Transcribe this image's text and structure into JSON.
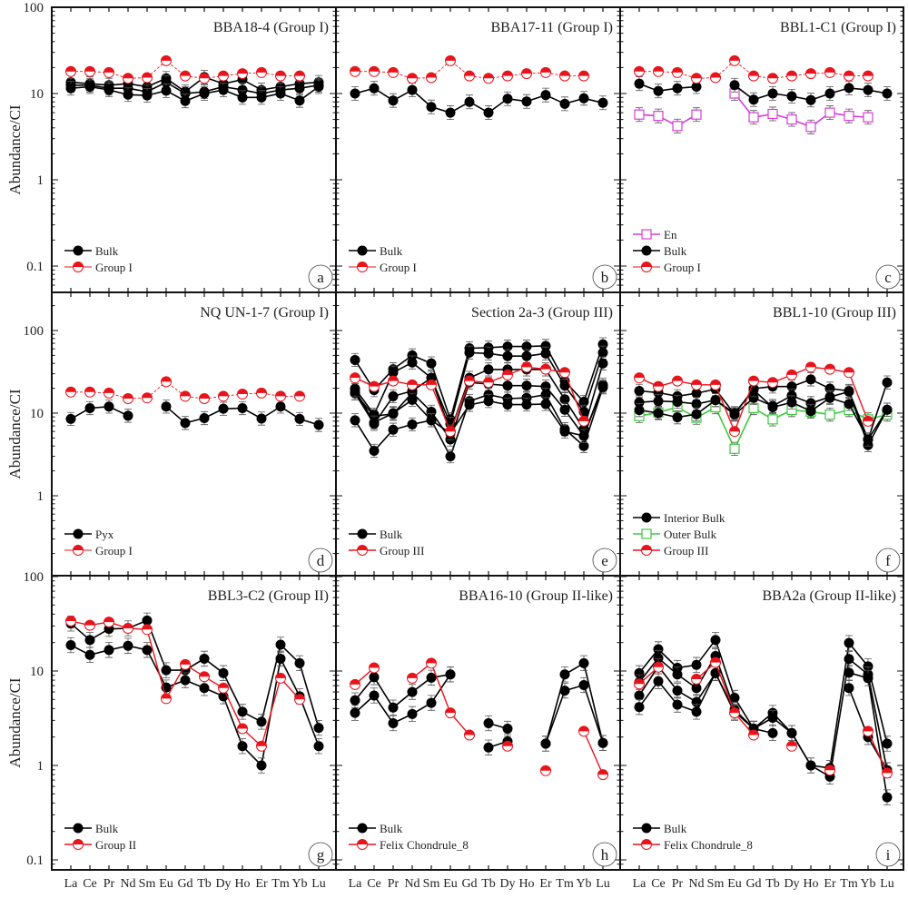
{
  "figure": {
    "ylabel": "Abundance/CI",
    "elements": [
      "La",
      "Ce",
      "Pr",
      "Nd",
      "Sm",
      "Eu",
      "Gd",
      "Tb",
      "Dy",
      "Ho",
      "Er",
      "Tm",
      "Yb",
      "Lu"
    ]
  },
  "colors": {
    "bulk": "#000000",
    "reference": "#e8141c",
    "en": "#d43fd4",
    "outer_bulk": "#3ec93e",
    "errorbar": "#555555"
  },
  "chart_data": [
    {
      "type": "line",
      "panel": "a",
      "title": "BBA18-4 (Group I)",
      "ylabel": "Abundance/CI",
      "yscale": "log",
      "ylim": [
        0.05,
        100
      ],
      "yticks": [
        "100",
        "10",
        "1",
        "0.1"
      ],
      "row": 0,
      "col": 0,
      "legend": [
        {
          "label": "Bulk",
          "style": "bulk"
        },
        {
          "label": "Group I",
          "style": "ref-dashed"
        }
      ],
      "series": [
        {
          "name": "Bulk",
          "style": "bulk",
          "values": [
            13.5,
            13,
            12.5,
            13,
            12,
            15,
            10.5,
            15.5,
            13,
            14.5,
            11,
            12,
            13,
            13.5
          ]
        },
        {
          "name": "Bulk",
          "style": "bulk",
          "values": [
            12.5,
            12.5,
            11.5,
            11.5,
            10.5,
            13.5,
            10,
            10.5,
            12,
            11,
            10,
            11,
            11.5,
            12.5
          ]
        },
        {
          "name": "Bulk",
          "style": "bulk",
          "values": [
            11.5,
            12,
            11,
            9.7,
            9.5,
            10.8,
            8.2,
            10,
            11,
            9,
            9,
            10,
            8.3,
            12
          ]
        },
        {
          "name": "Group I",
          "style": "ref-dashed",
          "values": [
            18,
            18,
            17.5,
            15,
            15.3,
            24,
            16,
            15,
            16,
            17,
            17.5,
            16,
            16,
            null
          ]
        }
      ]
    },
    {
      "type": "line",
      "panel": "b",
      "title": "BBA17-11 (Group I)",
      "yscale": "log",
      "ylim": [
        0.05,
        100
      ],
      "row": 0,
      "col": 1,
      "legend": [
        {
          "label": "Bulk",
          "style": "bulk"
        },
        {
          "label": "Group I",
          "style": "ref-dashed"
        }
      ],
      "series": [
        {
          "name": "Bulk",
          "style": "bulk",
          "values": [
            10,
            11.5,
            8.3,
            11,
            7,
            6,
            8,
            6,
            8.7,
            8.1,
            9.6,
            7.6,
            8.8,
            7.8
          ]
        },
        {
          "name": "Group I",
          "style": "ref-dashed",
          "values": [
            18,
            18,
            17.5,
            15,
            15.3,
            24,
            16,
            15,
            16,
            17,
            17.5,
            16,
            16,
            null
          ]
        }
      ]
    },
    {
      "type": "line",
      "panel": "c",
      "title": "BBL1-C1 (Group I)",
      "yscale": "log",
      "ylim": [
        0.05,
        100
      ],
      "row": 0,
      "col": 2,
      "legend": [
        {
          "label": "En",
          "style": "en"
        },
        {
          "label": "Bulk",
          "style": "bulk"
        },
        {
          "label": "Group I",
          "style": "ref-dashed"
        }
      ],
      "series": [
        {
          "name": "En",
          "style": "en",
          "values": [
            5.7,
            5.5,
            4.2,
            5.7,
            null,
            10,
            5.3,
            5.8,
            5,
            4.1,
            6,
            5.5,
            5.3,
            null
          ]
        },
        {
          "name": "Bulk",
          "style": "bulk",
          "values": [
            13,
            10.7,
            11.5,
            12,
            null,
            12.5,
            8.5,
            10,
            9.3,
            8.4,
            10,
            11.6,
            11,
            10
          ]
        },
        {
          "name": "Group I",
          "style": "ref-dashed",
          "values": [
            18,
            18,
            17.5,
            15,
            15.3,
            24,
            16,
            15,
            16,
            17,
            17.5,
            16,
            16,
            null
          ]
        }
      ]
    },
    {
      "type": "line",
      "panel": "d",
      "title": "NQ UN-1-7 (Group I)",
      "yscale": "log",
      "ylim": [
        0.1,
        290
      ],
      "yticks": [
        "100",
        "10",
        "1",
        "100"
      ],
      "row": 1,
      "col": 0,
      "legend": [
        {
          "label": "Pyx",
          "style": "bulk"
        },
        {
          "label": "Group I",
          "style": "ref-dashed"
        }
      ],
      "series": [
        {
          "name": "Pyx",
          "style": "bulk",
          "values": [
            8.5,
            11.5,
            12,
            9.3,
            null,
            12,
            7.6,
            8.7,
            11.3,
            11.5,
            8.6,
            12,
            8.5,
            7.2
          ]
        },
        {
          "name": "Group I",
          "style": "ref-dashed",
          "values": [
            18,
            18,
            17.5,
            15,
            15.3,
            24,
            16,
            15,
            16,
            17,
            17.5,
            16,
            16,
            null
          ]
        }
      ]
    },
    {
      "type": "line",
      "panel": "e",
      "title": "Section 2a-3 (Group III)",
      "yscale": "log",
      "ylim": [
        0.1,
        290
      ],
      "row": 1,
      "col": 1,
      "legend": [
        {
          "label": "Bulk",
          "style": "bulk"
        },
        {
          "label": "Group III",
          "style": "ref"
        }
      ],
      "series": [
        {
          "name": "Bulk",
          "style": "bulk",
          "values": [
            44,
            19,
            34,
            50,
            40,
            8.4,
            61,
            62,
            64,
            64,
            65,
            24.5,
            13.7,
            68
          ]
        },
        {
          "name": "Bulk",
          "style": "bulk",
          "values": [
            19.8,
            9.6,
            31,
            41,
            26.7,
            7.4,
            54,
            52.7,
            49,
            49,
            52.7,
            21.5,
            10.4,
            54
          ]
        },
        {
          "name": "Bulk",
          "style": "bulk",
          "values": [
            17.4,
            7.4,
            16,
            18.6,
            26.7,
            6,
            26.7,
            33.8,
            33.8,
            33.8,
            33.8,
            14.7,
            6.4,
            40
          ]
        },
        {
          "name": "Bulk",
          "style": "bulk",
          "values": [
            17.4,
            9.2,
            9.8,
            17.6,
            10.4,
            4.8,
            23.5,
            22.5,
            21.5,
            21.5,
            21,
            11,
            5.3,
            22
          ]
        },
        {
          "name": "Bulk",
          "style": "bulk",
          "values": [
            8.2,
            3.5,
            6.3,
            7.3,
            8.2,
            3,
            14,
            16.7,
            15,
            15.3,
            16.7,
            6.4,
            4,
            20.5
          ]
        },
        {
          "name": "Bulk",
          "style": "bulk",
          "values": [
            19,
            7.7,
            10,
            14.5,
            8.2,
            5.7,
            12.6,
            14,
            12.7,
            12.7,
            12.9,
            6,
            5.3,
            21
          ]
        },
        {
          "name": "Group III",
          "style": "ref",
          "values": [
            26.7,
            21,
            24.5,
            22,
            22,
            6,
            24.5,
            23.5,
            29,
            36,
            34,
            31,
            8,
            null
          ]
        }
      ]
    },
    {
      "type": "line",
      "panel": "f",
      "title": "BBL1-10 (Group III)",
      "yscale": "log",
      "ylim": [
        0.1,
        290
      ],
      "row": 1,
      "col": 2,
      "legend": [
        {
          "label": "Interior Bulk",
          "style": "bulk"
        },
        {
          "label": "Outer Bulk",
          "style": "outer"
        },
        {
          "label": "Group III",
          "style": "ref"
        }
      ],
      "series": [
        {
          "name": "Outer Bulk",
          "style": "outer",
          "values": [
            9.2,
            10.2,
            11.8,
            8.8,
            11.8,
            3.7,
            11.5,
            8.4,
            10.9,
            10.4,
            9.6,
            10.9,
            8.4,
            9.6
          ]
        },
        {
          "name": "Interior Bulk",
          "style": "bulk",
          "values": [
            18.6,
            17.7,
            16,
            17.4,
            19.5,
            9.7,
            19.8,
            21,
            21,
            25.6,
            19.8,
            18.6,
            4.8,
            23.5
          ]
        },
        {
          "name": "Interior Bulk",
          "style": "bulk",
          "values": [
            13.5,
            14,
            13.7,
            12.9,
            14.4,
            9.6,
            15.3,
            12.2,
            16.3,
            13.2,
            15.7,
            18.2,
            4.1,
            11
          ]
        },
        {
          "name": "Interior Bulk",
          "style": "bulk",
          "values": [
            10.9,
            10,
            8.9,
            9.7,
            14.4,
            10,
            19,
            11.8,
            13.5,
            10.6,
            15.3,
            12.9,
            4.8,
            11
          ]
        },
        {
          "name": "Group III",
          "style": "ref",
          "values": [
            26.7,
            21,
            24.5,
            22,
            22,
            6,
            24.5,
            23.5,
            29,
            36,
            34,
            31,
            8,
            null
          ]
        }
      ]
    },
    {
      "type": "line",
      "panel": "g",
      "title": "BBL3-C2 (Group II)",
      "yscale": "log",
      "ylim": [
        0.08,
        100
      ],
      "yticks": [
        "100",
        "10",
        "1",
        "0.1"
      ],
      "row": 2,
      "col": 0,
      "legend": [
        {
          "label": "Bulk",
          "style": "bulk"
        },
        {
          "label": "Group II",
          "style": "ref"
        }
      ],
      "series": [
        {
          "name": "Bulk",
          "style": "bulk",
          "values": [
            31.8,
            21.3,
            27.9,
            28.3,
            34.3,
            10.2,
            10.2,
            13.5,
            9.5,
            3.7,
            2.9,
            19,
            12.1,
            2.5
          ]
        },
        {
          "name": "Bulk",
          "style": "bulk",
          "values": [
            18.8,
            14.8,
            16.7,
            18.5,
            16.7,
            6.7,
            8,
            6.6,
            5.4,
            1.6,
            1.0,
            13.5,
            5.4,
            1.6
          ]
        },
        {
          "name": "Group II",
          "style": "ref",
          "values": [
            33.8,
            30.5,
            33,
            28.3,
            27.5,
            5.1,
            11.7,
            8.7,
            6.6,
            2.45,
            1.6,
            8.4,
            5.0,
            null
          ]
        }
      ]
    },
    {
      "type": "line",
      "panel": "h",
      "title": "BBA16-10 (Group II-like)",
      "yscale": "log",
      "ylim": [
        0.08,
        100
      ],
      "row": 2,
      "col": 1,
      "legend": [
        {
          "label": "Bulk",
          "style": "bulk"
        },
        {
          "label": "Felix Chondrule_8",
          "style": "ref"
        }
      ],
      "series": [
        {
          "name": "Bulk",
          "style": "bulk",
          "values": [
            4.9,
            8.6,
            4.1,
            6.0,
            8.5,
            9.2,
            null,
            2.8,
            2.45,
            null,
            1.7,
            9.2,
            12.1,
            1.73
          ]
        },
        {
          "name": "Bulk",
          "style": "bulk",
          "values": [
            3.6,
            5.5,
            2.8,
            3.5,
            4.6,
            9.2,
            null,
            1.55,
            1.8,
            null,
            1.7,
            6.2,
            7.1,
            1.73
          ]
        },
        {
          "name": "Felix Chondrule_8",
          "style": "ref",
          "values": [
            7.2,
            10.8,
            null,
            8.4,
            12.1,
            3.6,
            2.1,
            null,
            1.6,
            null,
            0.88,
            null,
            2.3,
            0.8
          ]
        }
      ]
    },
    {
      "type": "line",
      "panel": "i",
      "title": "BBA2a  (Group II-like)",
      "yscale": "log",
      "ylim": [
        0.08,
        100
      ],
      "row": 2,
      "col": 2,
      "legend": [
        {
          "label": "Bulk",
          "style": "bulk"
        },
        {
          "label": "Felix Chondrule_8",
          "style": "ref"
        }
      ],
      "series": [
        {
          "name": "Bulk",
          "style": "bulk",
          "values": [
            9.5,
            17,
            10.8,
            11.6,
            21.3,
            5.2,
            2.45,
            3.6,
            2.2,
            1.0,
            0.94,
            19.8,
            11.2,
            1.7
          ]
        },
        {
          "name": "Bulk",
          "style": "bulk",
          "values": [
            7.6,
            13.7,
            9.2,
            6.6,
            14.4,
            3.9,
            2.45,
            3.2,
            2.2,
            1.0,
            0.76,
            13.4,
            9.2,
            0.89
          ]
        },
        {
          "name": "Bulk",
          "style": "bulk",
          "values": [
            5.5,
            11.2,
            6.2,
            4.7,
            9.5,
            3.7,
            2.45,
            2.2,
            null,
            null,
            null,
            9.6,
            8.4,
            0.46
          ]
        },
        {
          "name": "Bulk",
          "style": "bulk",
          "values": [
            4.15,
            7.8,
            4.4,
            3.7,
            9.5,
            3.6,
            null,
            null,
            null,
            null,
            null,
            6.6,
            2.0,
            0.89
          ]
        },
        {
          "name": "Felix Chondrule_8",
          "style": "ref",
          "values": [
            7.3,
            11,
            null,
            8.2,
            12.3,
            3.6,
            2.1,
            null,
            1.6,
            null,
            0.89,
            null,
            2.3,
            0.83
          ]
        }
      ]
    }
  ]
}
